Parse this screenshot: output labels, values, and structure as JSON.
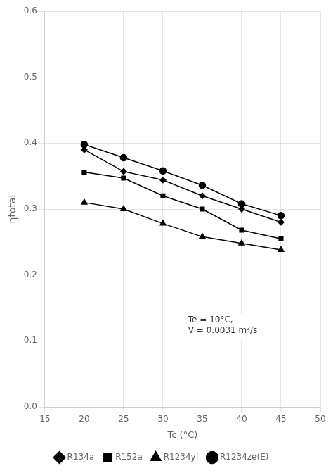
{
  "chart_data": {
    "type": "line",
    "x": [
      20,
      25,
      30,
      35,
      40,
      45
    ],
    "series": [
      {
        "name": "R134a",
        "color": "black",
        "marker": "diamond",
        "values": [
          0.39,
          0.357,
          0.344,
          0.32,
          0.3,
          0.28
        ]
      },
      {
        "name": "R152a",
        "color": "black",
        "marker": "square",
        "values": [
          0.356,
          0.347,
          0.32,
          0.3,
          0.268,
          0.255
        ]
      },
      {
        "name": "R1234yf",
        "color": "black",
        "marker": "triangle",
        "values": [
          0.31,
          0.3,
          0.278,
          0.258,
          0.248,
          0.238
        ]
      },
      {
        "name": "R1234ze(E)",
        "color": "black",
        "marker": "circle",
        "values": [
          0.398,
          0.378,
          0.358,
          0.336,
          0.308,
          0.29
        ]
      }
    ],
    "xlabel": "Tc (°C)",
    "ylabel": "ηtotal",
    "xlim": [
      15,
      50
    ],
    "ylim": [
      0,
      0.6
    ],
    "xticks": [
      15,
      20,
      25,
      30,
      35,
      40,
      45,
      50
    ],
    "yticks": [
      {
        "value": 0,
        "label": "0.0"
      },
      0.1,
      0.2,
      0.3,
      0.4,
      0.5,
      0.6
    ],
    "grid": true,
    "legend": "bottom",
    "annotations": [
      "Te = 10°C,",
      "V = 0.0031 m³/s"
    ]
  }
}
